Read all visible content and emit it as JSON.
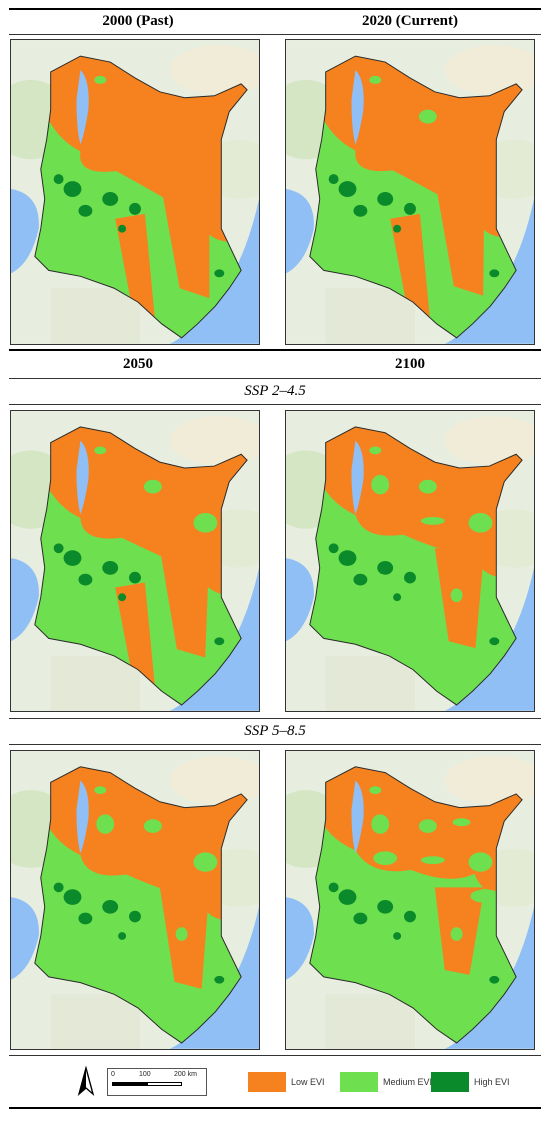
{
  "headers": {
    "row1_left": "2000 (Past)",
    "row1_right": "2020 (Current)",
    "row2_left": "2050",
    "row2_right": "2100"
  },
  "scenarios": {
    "ssp245": "SSP 2–4.5",
    "ssp585": "SSP 5–8.5"
  },
  "maps": [
    {
      "id": "2000",
      "low_evi_fraction": 0.55
    },
    {
      "id": "2020",
      "low_evi_fraction": 0.53
    },
    {
      "id": "2050-ssp245",
      "low_evi_fraction": 0.48
    },
    {
      "id": "2100-ssp245",
      "low_evi_fraction": 0.4
    },
    {
      "id": "2050-ssp585",
      "low_evi_fraction": 0.42
    },
    {
      "id": "2100-ssp585",
      "low_evi_fraction": 0.3
    }
  ],
  "legend": {
    "low": "Low EVI",
    "medium": "Medium EVI",
    "high": "High EVI",
    "colors": {
      "low": "#f5821f",
      "medium": "#6ee050",
      "high": "#0a8a2a"
    }
  },
  "scale_bar": {
    "ticks": [
      "0",
      "100",
      "200 km"
    ]
  },
  "north_arrow_icon": "north-arrow-icon"
}
